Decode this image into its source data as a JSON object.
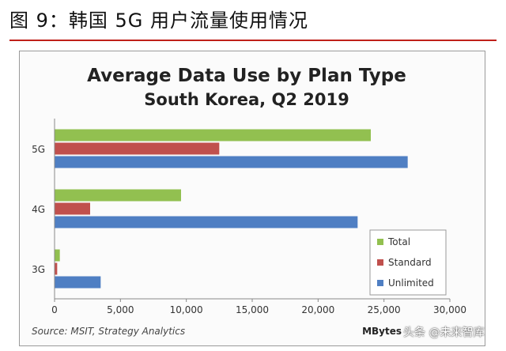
{
  "figure_title": "图 9：韩国 5G 用户流量使用情况",
  "source": "Source: MSIT, Strategy Analytics",
  "watermark": "头条 @未来智库",
  "colors": {
    "accent_rule": "#c0201a",
    "total": "#92c050",
    "standard": "#c0504d",
    "unlimited": "#4f7fc3"
  },
  "chart_data": {
    "type": "bar",
    "orientation": "horizontal",
    "title": "Average Data Use by Plan Type",
    "subtitle": "South Korea, Q2 2019",
    "xlabel": "MBytes",
    "ylabel": "",
    "categories": [
      "5G",
      "4G",
      "3G"
    ],
    "series": [
      {
        "name": "Total",
        "values": [
          24000,
          9600,
          400
        ]
      },
      {
        "name": "Standard",
        "values": [
          12500,
          2700,
          200
        ]
      },
      {
        "name": "Unlimited",
        "values": [
          26800,
          23000,
          3500
        ]
      }
    ],
    "xlim": [
      0,
      30000
    ],
    "xticks": [
      "0",
      "5,000",
      "10,000",
      "15,000",
      "20,000",
      "25,000",
      "30,000"
    ],
    "grid": false,
    "legend": "bottom-right"
  }
}
